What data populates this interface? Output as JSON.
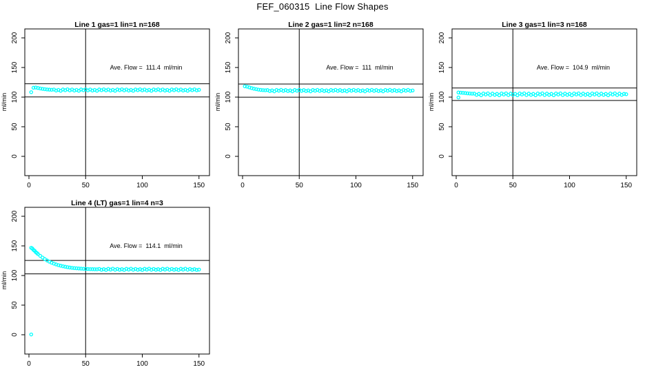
{
  "figure": {
    "background": "#ffffff",
    "accent_color": "#00ffff",
    "axis_color": "#000000"
  },
  "chart_data": {
    "type": "scatter",
    "title": "FEF_060315  Line Flow Shapes",
    "marker": "open-circle",
    "marker_color": "#00ffff",
    "grid": false,
    "x_ticks": [
      0,
      50,
      100,
      150
    ],
    "y_ticks": [
      0,
      50,
      100,
      150,
      200
    ],
    "xlim": [
      -2.5,
      159.5
    ],
    "ylim": [
      -33,
      215
    ],
    "ylabel": "ml/min",
    "reference_note": "each panel: vertical line at x=50, horizontal lines at avg flow +/-10%",
    "panels": [
      {
        "title": "Line 1 gas=1 lin=1 n=168",
        "annotation": "Ave. Flow =  111.4  ml/min",
        "avg_flow": 111.4,
        "n": 168,
        "ref_vline": 50,
        "ref_hlines": [
          122.5,
          100.3
        ],
        "points": [
          [
            2,
            108.3
          ],
          [
            4,
            115.8
          ],
          [
            6,
            116.2
          ],
          [
            8,
            115.4
          ],
          [
            10,
            114.6
          ],
          [
            12,
            113.9
          ],
          [
            14,
            113.4
          ],
          [
            16,
            112.9
          ],
          [
            18,
            112.6
          ],
          [
            20,
            112.4
          ],
          [
            22,
            112.8
          ],
          [
            24,
            111.1
          ],
          [
            26,
            112.2
          ],
          [
            28,
            110.7
          ],
          [
            30,
            112.9
          ],
          [
            32,
            111.7
          ],
          [
            34,
            113.1
          ],
          [
            36,
            111.4
          ],
          [
            38,
            112.8
          ],
          [
            40,
            111.1
          ],
          [
            42,
            112.2
          ],
          [
            44,
            110.7
          ],
          [
            46,
            112.9
          ],
          [
            48,
            111.7
          ],
          [
            50,
            113.1
          ],
          [
            52,
            111.4
          ],
          [
            54,
            112.8
          ],
          [
            56,
            111.1
          ],
          [
            58,
            112.2
          ],
          [
            60,
            110.7
          ],
          [
            62,
            112.9
          ],
          [
            64,
            111.7
          ],
          [
            66,
            113.1
          ],
          [
            68,
            111.4
          ],
          [
            70,
            112.8
          ],
          [
            72,
            111.1
          ],
          [
            74,
            112.2
          ],
          [
            76,
            110.7
          ],
          [
            78,
            112.9
          ],
          [
            80,
            111.7
          ],
          [
            82,
            113.1
          ],
          [
            84,
            111.4
          ],
          [
            86,
            112.8
          ],
          [
            88,
            111.1
          ],
          [
            90,
            112.2
          ],
          [
            92,
            110.7
          ],
          [
            94,
            112.9
          ],
          [
            96,
            111.7
          ],
          [
            98,
            113.1
          ],
          [
            100,
            111.4
          ],
          [
            102,
            112.8
          ],
          [
            104,
            111.1
          ],
          [
            106,
            112.2
          ],
          [
            108,
            110.7
          ],
          [
            110,
            112.9
          ],
          [
            112,
            111.7
          ],
          [
            114,
            113.1
          ],
          [
            116,
            111.4
          ],
          [
            118,
            112.8
          ],
          [
            120,
            111.1
          ],
          [
            122,
            112.2
          ],
          [
            124,
            110.7
          ],
          [
            126,
            112.9
          ],
          [
            128,
            111.7
          ],
          [
            130,
            113.1
          ],
          [
            132,
            111.4
          ],
          [
            134,
            112.8
          ],
          [
            136,
            111.1
          ],
          [
            138,
            112.2
          ],
          [
            140,
            110.7
          ],
          [
            142,
            112.9
          ],
          [
            144,
            111.7
          ],
          [
            146,
            113.1
          ],
          [
            148,
            111.4
          ],
          [
            150,
            112.3
          ]
        ]
      },
      {
        "title": "Line 2 gas=1 lin=2 n=168",
        "annotation": "Ave. Flow =  111  ml/min",
        "avg_flow": 111,
        "n": 168,
        "ref_vline": 50,
        "ref_hlines": [
          122.1,
          99.9
        ],
        "points": [
          [
            2,
            118.2
          ],
          [
            4,
            117.6
          ],
          [
            6,
            116.4
          ],
          [
            8,
            115.2
          ],
          [
            10,
            114.2
          ],
          [
            12,
            113.4
          ],
          [
            14,
            112.7
          ],
          [
            16,
            112.2
          ],
          [
            18,
            111.8
          ],
          [
            20,
            111.5
          ],
          [
            22,
            111.9
          ],
          [
            24,
            110.2
          ],
          [
            26,
            111.3
          ],
          [
            28,
            109.8
          ],
          [
            30,
            112.0
          ],
          [
            32,
            110.8
          ],
          [
            34,
            112.2
          ],
          [
            36,
            110.5
          ],
          [
            38,
            111.9
          ],
          [
            40,
            110.2
          ],
          [
            42,
            111.3
          ],
          [
            44,
            109.8
          ],
          [
            46,
            112.0
          ],
          [
            48,
            110.8
          ],
          [
            50,
            112.2
          ],
          [
            52,
            110.5
          ],
          [
            54,
            111.9
          ],
          [
            56,
            110.2
          ],
          [
            58,
            111.3
          ],
          [
            60,
            109.8
          ],
          [
            62,
            112.0
          ],
          [
            64,
            110.8
          ],
          [
            66,
            112.2
          ],
          [
            68,
            110.5
          ],
          [
            70,
            111.9
          ],
          [
            72,
            110.2
          ],
          [
            74,
            111.3
          ],
          [
            76,
            109.8
          ],
          [
            78,
            112.0
          ],
          [
            80,
            110.8
          ],
          [
            82,
            112.2
          ],
          [
            84,
            110.5
          ],
          [
            86,
            111.9
          ],
          [
            88,
            110.2
          ],
          [
            90,
            111.3
          ],
          [
            92,
            109.8
          ],
          [
            94,
            112.0
          ],
          [
            96,
            110.8
          ],
          [
            98,
            112.2
          ],
          [
            100,
            110.5
          ],
          [
            102,
            111.9
          ],
          [
            104,
            110.2
          ],
          [
            106,
            111.3
          ],
          [
            108,
            109.8
          ],
          [
            110,
            112.0
          ],
          [
            112,
            110.8
          ],
          [
            114,
            112.2
          ],
          [
            116,
            110.5
          ],
          [
            118,
            111.9
          ],
          [
            120,
            110.2
          ],
          [
            122,
            111.3
          ],
          [
            124,
            109.8
          ],
          [
            126,
            112.0
          ],
          [
            128,
            110.8
          ],
          [
            130,
            112.2
          ],
          [
            132,
            110.5
          ],
          [
            134,
            111.9
          ],
          [
            136,
            110.2
          ],
          [
            138,
            111.3
          ],
          [
            140,
            109.8
          ],
          [
            142,
            112.0
          ],
          [
            144,
            110.8
          ],
          [
            146,
            112.2
          ],
          [
            148,
            110.5
          ],
          [
            150,
            111.2
          ]
        ]
      },
      {
        "title": "Line 3 gas=1 lin=3 n=168",
        "annotation": "Ave. Flow =  104.9  ml/min",
        "avg_flow": 104.9,
        "n": 168,
        "ref_vline": 50,
        "ref_hlines": [
          115.4,
          94.4
        ],
        "points": [
          [
            2,
            99.4
          ],
          [
            2,
            107.8
          ],
          [
            4,
            107.5
          ],
          [
            6,
            107.2
          ],
          [
            8,
            106.8
          ],
          [
            10,
            106.4
          ],
          [
            12,
            106.1
          ],
          [
            14,
            105.8
          ],
          [
            16,
            105.9
          ],
          [
            18,
            103.8
          ],
          [
            20,
            105.5
          ],
          [
            22,
            103.2
          ],
          [
            24,
            106.1
          ],
          [
            26,
            104.4
          ],
          [
            28,
            106.3
          ],
          [
            30,
            103.5
          ],
          [
            32,
            105.9
          ],
          [
            34,
            103.8
          ],
          [
            36,
            105.5
          ],
          [
            38,
            103.2
          ],
          [
            40,
            106.1
          ],
          [
            42,
            104.4
          ],
          [
            44,
            106.3
          ],
          [
            46,
            103.5
          ],
          [
            48,
            105.9
          ],
          [
            50,
            103.8
          ],
          [
            52,
            105.5
          ],
          [
            54,
            103.2
          ],
          [
            56,
            106.1
          ],
          [
            58,
            104.4
          ],
          [
            60,
            106.3
          ],
          [
            62,
            103.5
          ],
          [
            64,
            105.9
          ],
          [
            66,
            103.8
          ],
          [
            68,
            105.5
          ],
          [
            70,
            103.2
          ],
          [
            72,
            106.1
          ],
          [
            74,
            104.4
          ],
          [
            76,
            106.3
          ],
          [
            78,
            103.5
          ],
          [
            80,
            105.9
          ],
          [
            82,
            103.8
          ],
          [
            84,
            105.5
          ],
          [
            86,
            103.2
          ],
          [
            88,
            106.1
          ],
          [
            90,
            104.4
          ],
          [
            92,
            106.3
          ],
          [
            94,
            103.5
          ],
          [
            96,
            105.9
          ],
          [
            98,
            103.8
          ],
          [
            100,
            105.5
          ],
          [
            102,
            103.2
          ],
          [
            104,
            106.1
          ],
          [
            106,
            104.4
          ],
          [
            108,
            106.3
          ],
          [
            110,
            103.5
          ],
          [
            112,
            105.9
          ],
          [
            114,
            103.8
          ],
          [
            116,
            105.5
          ],
          [
            118,
            103.2
          ],
          [
            120,
            106.1
          ],
          [
            122,
            104.4
          ],
          [
            124,
            106.3
          ],
          [
            126,
            103.5
          ],
          [
            128,
            105.9
          ],
          [
            130,
            103.8
          ],
          [
            132,
            105.5
          ],
          [
            134,
            103.2
          ],
          [
            136,
            106.1
          ],
          [
            138,
            104.4
          ],
          [
            140,
            106.3
          ],
          [
            142,
            103.5
          ],
          [
            144,
            105.9
          ],
          [
            146,
            103.8
          ],
          [
            148,
            105.5
          ],
          [
            150,
            104.9
          ]
        ]
      },
      {
        "title": "Line 4 (LT) gas=1 lin=4 n=3",
        "annotation": "Ave. Flow =  114.1  ml/min",
        "avg_flow": 114.1,
        "n": 3,
        "ref_vline": 50,
        "ref_hlines": [
          125.5,
          102.7
        ],
        "points": [
          [
            2,
            0.5
          ],
          [
            2,
            146.8
          ],
          [
            3,
            145.6
          ],
          [
            4,
            143.2
          ],
          [
            5,
            141.8
          ],
          [
            6,
            139.4
          ],
          [
            7,
            138.0
          ],
          [
            8,
            136.2
          ],
          [
            10,
            133.1
          ],
          [
            12,
            130.3
          ],
          [
            14,
            127.7
          ],
          [
            16,
            125.4
          ],
          [
            18,
            123.4
          ],
          [
            20,
            121.6
          ],
          [
            22,
            120.1
          ],
          [
            24,
            118.7
          ],
          [
            26,
            117.5
          ],
          [
            28,
            116.5
          ],
          [
            30,
            115.6
          ],
          [
            32,
            114.8
          ],
          [
            34,
            114.1
          ],
          [
            36,
            113.5
          ],
          [
            38,
            113.0
          ],
          [
            40,
            112.5
          ],
          [
            42,
            112.2
          ],
          [
            44,
            111.9
          ],
          [
            46,
            111.6
          ],
          [
            48,
            111.4
          ],
          [
            50,
            111.2
          ],
          [
            52,
            111.0
          ],
          [
            54,
            110.8
          ],
          [
            56,
            110.7
          ],
          [
            58,
            110.6
          ],
          [
            60,
            110.5
          ],
          [
            62,
            111.1
          ],
          [
            64,
            109.7
          ],
          [
            66,
            110.7
          ],
          [
            68,
            109.4
          ],
          [
            70,
            111.3
          ],
          [
            72,
            110.0
          ],
          [
            74,
            111.5
          ],
          [
            76,
            109.8
          ],
          [
            78,
            111.1
          ],
          [
            80,
            109.7
          ],
          [
            82,
            110.7
          ],
          [
            84,
            109.4
          ],
          [
            86,
            111.3
          ],
          [
            88,
            110.0
          ],
          [
            90,
            111.5
          ],
          [
            92,
            109.8
          ],
          [
            94,
            111.1
          ],
          [
            96,
            109.7
          ],
          [
            98,
            110.7
          ],
          [
            100,
            109.4
          ],
          [
            102,
            111.3
          ],
          [
            104,
            110.0
          ],
          [
            106,
            111.5
          ],
          [
            108,
            109.8
          ],
          [
            110,
            111.1
          ],
          [
            112,
            109.7
          ],
          [
            114,
            110.7
          ],
          [
            116,
            109.4
          ],
          [
            118,
            111.3
          ],
          [
            120,
            110.0
          ],
          [
            122,
            111.5
          ],
          [
            124,
            109.8
          ],
          [
            126,
            111.1
          ],
          [
            128,
            109.7
          ],
          [
            130,
            110.7
          ],
          [
            132,
            109.4
          ],
          [
            134,
            111.3
          ],
          [
            136,
            110.0
          ],
          [
            138,
            111.5
          ],
          [
            140,
            109.8
          ],
          [
            142,
            111.1
          ],
          [
            144,
            109.7
          ],
          [
            146,
            110.7
          ],
          [
            148,
            109.4
          ],
          [
            150,
            110.1
          ]
        ]
      }
    ]
  }
}
